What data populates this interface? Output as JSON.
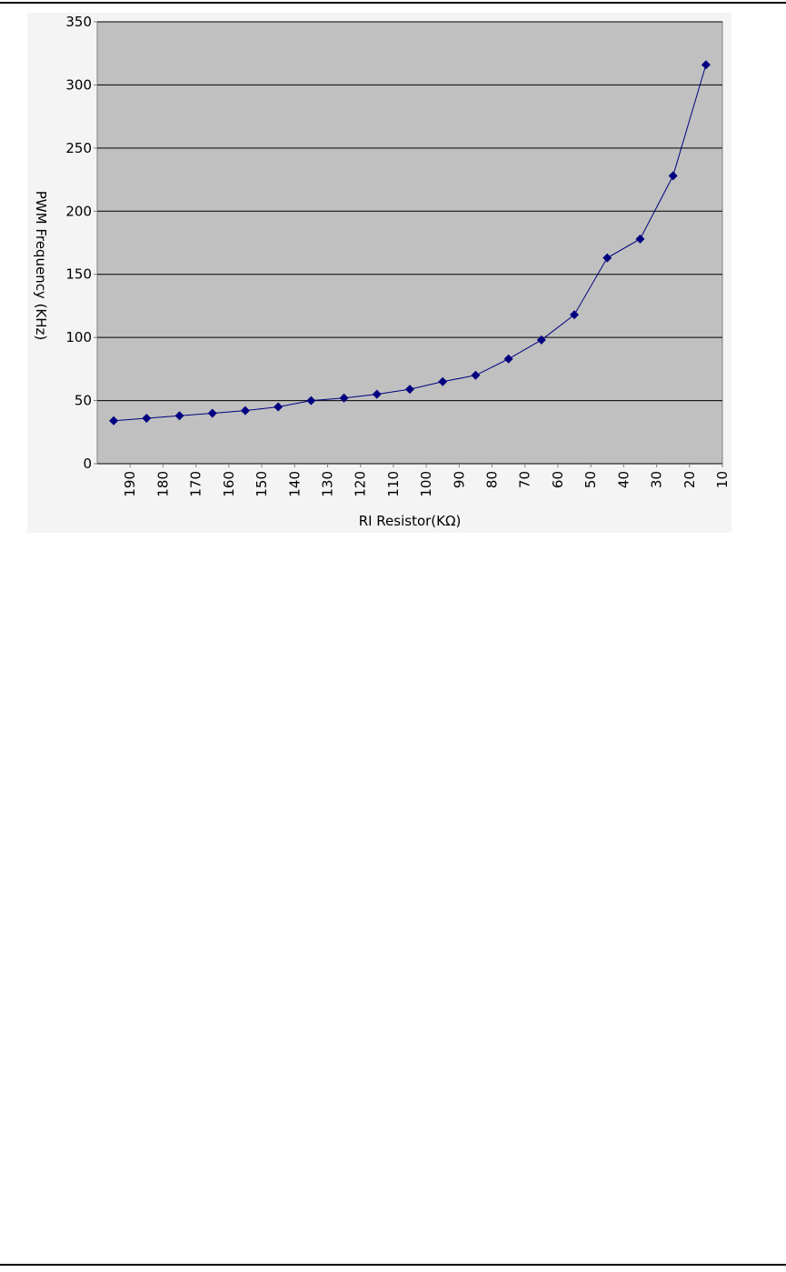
{
  "chart_data": {
    "type": "line",
    "x_label": "RI Resistor(KΩ)",
    "y_label": "PWM Frequency (KHz)",
    "x": [
      195,
      185,
      175,
      165,
      155,
      145,
      135,
      125,
      115,
      105,
      95,
      85,
      75,
      65,
      55,
      45,
      35,
      25,
      15
    ],
    "series": [
      {
        "color": "#000080",
        "values": [
          34,
          36,
          38,
          40,
          42,
          45,
          50,
          52,
          55,
          59,
          65,
          70,
          83,
          98,
          118,
          163,
          178,
          228,
          316
        ]
      }
    ],
    "xlim": [
      200,
      10
    ],
    "xticks": [
      190,
      180,
      170,
      160,
      150,
      140,
      130,
      120,
      110,
      100,
      90,
      80,
      70,
      60,
      50,
      40,
      30,
      20,
      10
    ],
    "ylim": [
      0,
      350
    ],
    "yticks": [
      0,
      50,
      100,
      150,
      200,
      250,
      300,
      350
    ],
    "grid": true
  }
}
